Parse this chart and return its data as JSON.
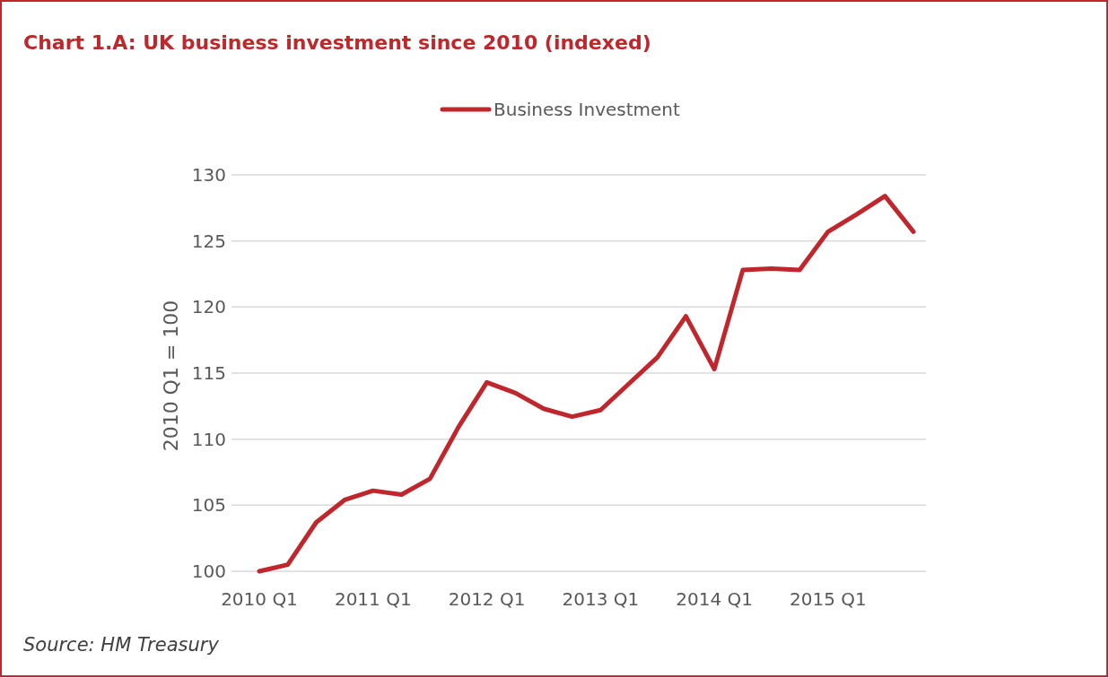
{
  "chart_data": {
    "type": "line",
    "title": "Chart 1.A: UK business investment since 2010 (indexed)",
    "ylabel": "2010 Q1 = 100",
    "categories": [
      "2010 Q1",
      null,
      null,
      null,
      "2011 Q1",
      null,
      null,
      null,
      "2012 Q1",
      null,
      null,
      null,
      "2013 Q1",
      null,
      null,
      null,
      "2014 Q1",
      null,
      null,
      null,
      "2015 Q1",
      null,
      null,
      null
    ],
    "series": [
      {
        "name": "Business Investment",
        "color": "#c0272d",
        "values": [
          100,
          100.5,
          103.7,
          105.4,
          106.1,
          105.8,
          107.0,
          110.9,
          114.3,
          113.5,
          112.3,
          111.7,
          112.2,
          114.2,
          116.2,
          119.3,
          115.3,
          122.8,
          122.9,
          122.8,
          125.7,
          127.0,
          128.4,
          125.7
        ]
      }
    ],
    "ylim": [
      100,
      130
    ],
    "yticks": [
      100,
      105,
      110,
      115,
      120,
      125,
      130
    ],
    "grid": "y",
    "legend": "top",
    "marker": "none",
    "line_style": "solid",
    "annotations": [
      "Source: HM Treasury"
    ]
  }
}
